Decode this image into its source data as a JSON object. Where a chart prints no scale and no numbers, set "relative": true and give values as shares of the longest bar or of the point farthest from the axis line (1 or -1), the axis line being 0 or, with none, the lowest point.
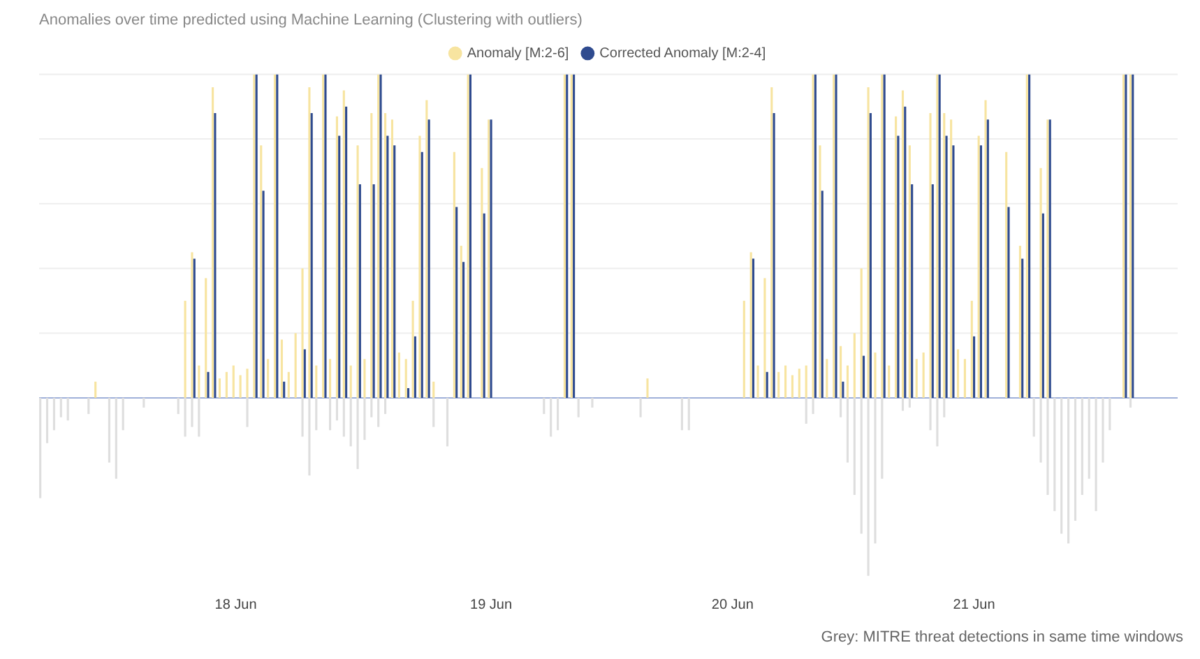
{
  "chart_data": {
    "type": "bar",
    "title": "Anomalies over time predicted using Machine Learning (Clustering with outliers)",
    "relative": true,
    "grid": "y",
    "legend": "top",
    "categories": [
      null,
      null,
      null,
      null,
      null,
      null,
      null,
      null,
      null,
      null,
      null,
      null,
      null,
      null,
      null,
      null,
      null,
      null,
      null,
      null,
      null,
      null,
      null,
      null,
      null,
      null,
      null,
      null,
      "18 Jun",
      null,
      null,
      null,
      null,
      null,
      null,
      null,
      null,
      null,
      null,
      null,
      null,
      null,
      null,
      null,
      null,
      null,
      null,
      null,
      null,
      null,
      null,
      null,
      null,
      null,
      null,
      null,
      null,
      null,
      null,
      null,
      null,
      null,
      null,
      null,
      null,
      "19 Jun",
      null,
      null,
      null,
      null,
      null,
      null,
      null,
      null,
      null,
      null,
      null,
      null,
      null,
      null,
      null,
      null,
      null,
      null,
      null,
      null,
      null,
      null,
      null,
      null,
      null,
      null,
      null,
      null,
      null,
      null,
      null,
      null,
      null,
      null,
      "20 Jun",
      null,
      null,
      null,
      null,
      null,
      null,
      null,
      null,
      null,
      null,
      null,
      null,
      null,
      null,
      null,
      null,
      null,
      null,
      null,
      null,
      null,
      null,
      null,
      null,
      null,
      null,
      null,
      null,
      null,
      null,
      null,
      null,
      null,
      null,
      "21 Jun",
      null,
      null,
      null,
      null,
      null,
      null,
      null,
      null,
      null,
      null,
      null,
      null,
      null,
      null,
      null,
      null,
      null,
      null,
      null,
      null,
      null,
      null,
      null,
      null,
      null,
      null,
      null,
      null,
      null
    ],
    "series": [
      {
        "name": "Anomaly [M:2-6]",
        "color": "#f7e4a0",
        "values": [
          0,
          0,
          0,
          0,
          0,
          0,
          0,
          0,
          0.05,
          0,
          0,
          0,
          0,
          0,
          0,
          0,
          0,
          0,
          0,
          0,
          0,
          0.3,
          0.45,
          0.1,
          0.37,
          0.96,
          0.06,
          0.08,
          0.1,
          0.07,
          0.09,
          1,
          0.78,
          0.12,
          1,
          0.18,
          0.08,
          0.2,
          0.4,
          0.96,
          0.1,
          1,
          0.12,
          0.87,
          0.95,
          0.1,
          0.78,
          0.12,
          0.88,
          1,
          0.88,
          0.86,
          0.14,
          0.12,
          0.3,
          0.81,
          0.92,
          0.05,
          0,
          0,
          0.76,
          0.47,
          1,
          0,
          0.71,
          0.86,
          0,
          0,
          0,
          0,
          0,
          0,
          0,
          0,
          0,
          0,
          1,
          1,
          0,
          0,
          0,
          0,
          0,
          0,
          0,
          0,
          0,
          0,
          0.06,
          0,
          0,
          0,
          0,
          0,
          0,
          0,
          0,
          0,
          0,
          0,
          0,
          0,
          0.3,
          0.45,
          0.1,
          0.37,
          0.96,
          0.08,
          0.1,
          0.07,
          0.09,
          0.1,
          1,
          0.78,
          0.12,
          1,
          0.16,
          0.1,
          0.2,
          0.4,
          0.96,
          0.14,
          1,
          0.1,
          0.87,
          0.95,
          0.78,
          0.12,
          0.14,
          0.88,
          1,
          0.88,
          0.86,
          0.15,
          0.12,
          0.3,
          0.81,
          0.92,
          0,
          0,
          0.76,
          0,
          0.47,
          1,
          0,
          0.71,
          0.86,
          0,
          0,
          0,
          0,
          0,
          0,
          0,
          0,
          0,
          0,
          1,
          1,
          0,
          0,
          0,
          0,
          0,
          0
        ]
      },
      {
        "name": "Corrected Anomaly [M:2-4]",
        "color": "#2f4b8f",
        "values": [
          0,
          0,
          0,
          0,
          0,
          0,
          0,
          0,
          0,
          0,
          0,
          0,
          0,
          0,
          0,
          0,
          0,
          0,
          0,
          0,
          0,
          0,
          0.43,
          0,
          0.08,
          0.88,
          0,
          0,
          0,
          0,
          0,
          1,
          0.64,
          0,
          1,
          0.05,
          0,
          0,
          0.15,
          0.88,
          0,
          1,
          0,
          0.81,
          0.9,
          0,
          0.66,
          0,
          0.66,
          1,
          0.81,
          0.78,
          0,
          0.03,
          0.19,
          0.76,
          0.86,
          0,
          0,
          0,
          0.59,
          0.42,
          1,
          0,
          0.57,
          0.86,
          0,
          0,
          0,
          0,
          0,
          0,
          0,
          0,
          0,
          0,
          1,
          1,
          0,
          0,
          0,
          0,
          0,
          0,
          0,
          0,
          0,
          0,
          0,
          0,
          0,
          0,
          0,
          0,
          0,
          0,
          0,
          0,
          0,
          0,
          0,
          0,
          0,
          0.43,
          0,
          0.08,
          0.88,
          0,
          0,
          0,
          0,
          0,
          1,
          0.64,
          0,
          1,
          0.05,
          0,
          0,
          0.13,
          0.88,
          0,
          1,
          0,
          0.81,
          0.9,
          0.66,
          0,
          0,
          0.66,
          1,
          0.81,
          0.78,
          0,
          0,
          0.19,
          0.78,
          0.86,
          0,
          0,
          0.59,
          0,
          0.43,
          1,
          0,
          0.57,
          0.86,
          0,
          0,
          0,
          0,
          0,
          0,
          0,
          0,
          0,
          0,
          1,
          1,
          0,
          0,
          0,
          0,
          0,
          0
        ]
      },
      {
        "color": "#dedede",
        "values": [
          -0.31,
          -0.14,
          -0.1,
          -0.06,
          -0.07,
          0,
          0,
          -0.05,
          0,
          0,
          -0.2,
          -0.25,
          -0.1,
          0,
          0,
          -0.03,
          0,
          0,
          0,
          0,
          -0.05,
          -0.12,
          -0.09,
          -0.12,
          0,
          0,
          0,
          0,
          0,
          0,
          -0.09,
          0,
          0,
          0,
          0,
          0,
          0,
          0,
          -0.12,
          -0.24,
          -0.1,
          0,
          -0.1,
          -0.07,
          -0.12,
          -0.15,
          -0.22,
          -0.13,
          -0.06,
          -0.09,
          -0.05,
          0,
          0,
          0,
          0,
          0,
          0,
          -0.09,
          0,
          -0.15,
          0,
          0,
          0,
          0,
          0,
          0,
          0,
          0,
          0,
          0,
          0,
          0,
          0,
          -0.05,
          -0.12,
          -0.1,
          0,
          0,
          -0.06,
          0,
          -0.03,
          0,
          0,
          0,
          0,
          0,
          0,
          -0.06,
          0,
          0,
          0,
          0,
          0,
          -0.1,
          -0.1,
          0,
          0,
          0,
          0,
          0,
          0,
          0,
          0,
          0,
          0,
          0,
          0,
          0,
          0,
          0,
          0,
          -0.08,
          -0.05,
          0,
          0,
          0,
          -0.06,
          -0.2,
          -0.3,
          -0.42,
          -0.55,
          -0.45,
          -0.25,
          0,
          0,
          -0.04,
          -0.03,
          0,
          0,
          -0.1,
          -0.15,
          -0.06,
          0,
          0,
          0,
          0,
          0,
          0,
          0,
          0,
          0,
          0,
          0,
          0,
          -0.12,
          -0.2,
          -0.3,
          -0.35,
          -0.42,
          -0.45,
          -0.38,
          -0.3,
          -0.25,
          -0.35,
          -0.2,
          -0.1,
          0,
          0,
          -0.03,
          0,
          0,
          0,
          0,
          0,
          0
        ]
      }
    ],
    "annotations": [
      "Grey: MITRE threat detections in same time windows"
    ]
  }
}
